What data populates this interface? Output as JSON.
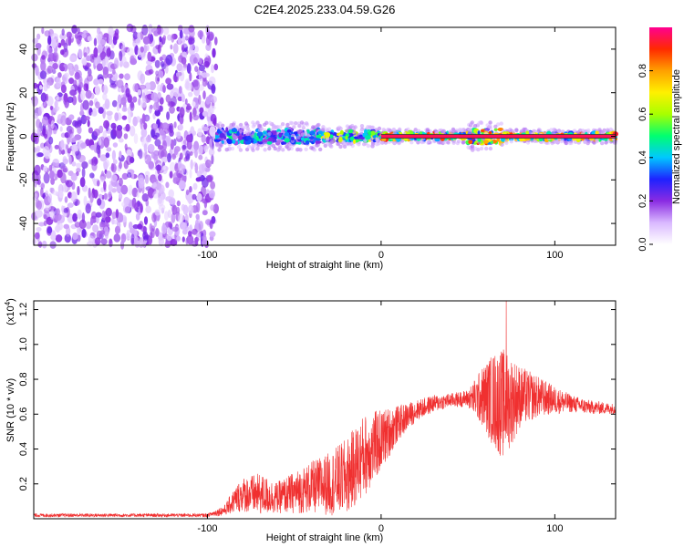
{
  "title": "C2E4.2025.233.04.59.G26",
  "colorbar": {
    "label": "Normalized spectral amplitude",
    "ticks": [
      0.0,
      0.2,
      0.4,
      0.6,
      0.8
    ],
    "tick_labels": [
      "0.0",
      "0.2",
      "0.4",
      "0.6",
      "0.8"
    ],
    "range": [
      0,
      1
    ],
    "colors": [
      "#ffffff",
      "#d9b8ff",
      "#8a2be2",
      "#1e22ff",
      "#00c8ff",
      "#00ff70",
      "#a8ff00",
      "#fff000",
      "#ffa000",
      "#ff2a00",
      "#ff0090"
    ]
  },
  "chart_data": [
    {
      "type": "heatmap",
      "panel": "spectrogram",
      "xlabel": "Height of straight line (km)",
      "ylabel": "Frequency (Hz)",
      "xlim": [
        -200,
        135
      ],
      "ylim": [
        -50,
        50
      ],
      "xticks": [
        -100,
        0,
        100
      ],
      "xtick_labels": [
        "-100",
        "0",
        "100"
      ],
      "yticks": [
        -40,
        -20,
        0,
        20,
        40
      ],
      "ytick_labels": [
        "-40",
        "-20",
        "0",
        "20",
        "40"
      ],
      "noise_region_x": [
        -200,
        -95
      ],
      "signal_line_freq": 0,
      "segments": [
        {
          "x": [
            -95,
            -35
          ],
          "freq_halfwidth": 4,
          "peak_amplitude": 0.5
        },
        {
          "x": [
            -35,
            0
          ],
          "freq_halfwidth": 3,
          "peak_amplitude": 0.7
        },
        {
          "x": [
            0,
            50
          ],
          "freq_halfwidth": 2,
          "peak_amplitude": 0.95
        },
        {
          "x": [
            50,
            70
          ],
          "freq_halfwidth": 4,
          "peak_amplitude": 0.9
        },
        {
          "x": [
            70,
            135
          ],
          "freq_halfwidth": 2,
          "peak_amplitude": 0.95
        }
      ]
    },
    {
      "type": "line",
      "panel": "snr",
      "xlabel": "Height of straight line (km)",
      "ylabel": "SNR (10 * v/v)",
      "y_multiplier_label": "(x10",
      "y_multiplier_exp": "4",
      "y_multiplier_close": ")",
      "xlim": [
        -200,
        135
      ],
      "ylim": [
        0,
        1.25
      ],
      "xticks": [
        -100,
        0,
        100
      ],
      "xtick_labels": [
        "-100",
        "0",
        "100"
      ],
      "yticks": [
        0.2,
        0.4,
        0.6,
        0.8,
        1.0,
        1.2
      ],
      "ytick_labels": [
        "0.2",
        "0.4",
        "0.6",
        "0.8",
        "1.0",
        "1.2"
      ],
      "color": "#f03030",
      "envelope": {
        "x": [
          -200,
          -100,
          -90,
          -85,
          -80,
          -70,
          -60,
          -50,
          -40,
          -30,
          -20,
          -10,
          0,
          10,
          20,
          30,
          40,
          50,
          60,
          65,
          70,
          75,
          80,
          90,
          100,
          110,
          120,
          135
        ],
        "mean": [
          0.02,
          0.02,
          0.05,
          0.1,
          0.14,
          0.14,
          0.12,
          0.15,
          0.18,
          0.2,
          0.24,
          0.36,
          0.45,
          0.55,
          0.62,
          0.66,
          0.68,
          0.69,
          0.7,
          0.68,
          0.66,
          0.68,
          0.7,
          0.7,
          0.68,
          0.66,
          0.64,
          0.63
        ],
        "spread": [
          0.01,
          0.01,
          0.03,
          0.07,
          0.1,
          0.12,
          0.09,
          0.12,
          0.15,
          0.18,
          0.22,
          0.24,
          0.18,
          0.1,
          0.06,
          0.05,
          0.04,
          0.05,
          0.2,
          0.28,
          0.32,
          0.26,
          0.18,
          0.12,
          0.08,
          0.05,
          0.04,
          0.03
        ]
      },
      "peak": {
        "x": 72,
        "y": 1.25
      }
    }
  ]
}
